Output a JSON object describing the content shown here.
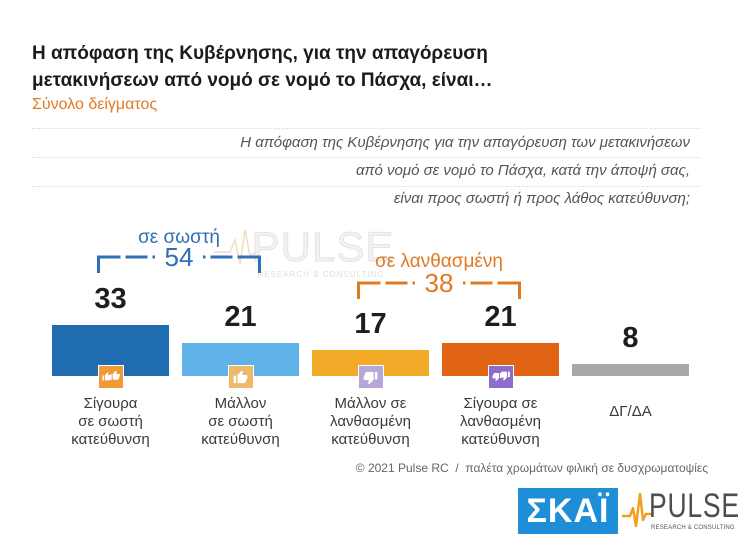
{
  "chart_data": {
    "type": "bar",
    "title": "Η απόφαση της Κυβέρνησης, για την απαγόρευση\nμετακινήσεων από νομό σε νομό το Πάσχα, είναι…",
    "subtitle": "Σύνολο δείγματος",
    "question": "Η απόφαση της Κυβέρνησης για την απαγόρευση των μετακινήσεων\nαπό νομό σε νομό το Πάσχα, κατά την άποψή σας,\nείναι προς σωστή ή προς λάθος κατεύθυνση;",
    "categories": [
      "Σίγουρα\nσε σωστή\nκατεύθυνση",
      "Μάλλον\nσε σωστή\nκατεύθυνση",
      "Μάλλον σε\nλανθασμένη\nκατεύθυνση",
      "Σίγουρα σε\nλανθασμένη\nκατεύθυνση",
      "ΔΓ/ΔΑ"
    ],
    "values": [
      33,
      21,
      17,
      21,
      8
    ],
    "colors": [
      "#1f6cb0",
      "#5fb3e8",
      "#f2aa28",
      "#e06414",
      "#a8a8a8"
    ],
    "icons": [
      "thumbs-up-double-icon",
      "thumbs-up-icon",
      "thumbs-down-icon",
      "thumbs-down-double-icon",
      null
    ],
    "icon_colors": [
      "#ee9a35",
      "#edb96b",
      "#b9a6d9",
      "#8e6cc9",
      null
    ],
    "groups": [
      {
        "label": "σε σωστή",
        "value": 54,
        "members": [
          0,
          1
        ],
        "color": "#2f6fb7"
      },
      {
        "label": "σε λανθασμένη",
        "value": 38,
        "members": [
          2,
          3
        ],
        "color": "#e07a22"
      }
    ]
  },
  "watermark": {
    "name": "PULSE",
    "tagline": "RESEARCH & CONSULTING"
  },
  "footer": {
    "credit": "© 2021 Pulse RC  /  παλέτα χρωμάτων φιλική σε δυσχρωματοψίες"
  },
  "logos": {
    "skai": "ΣΚΑΪ",
    "pulse": "PULSE",
    "pulse_tagline": "RESEARCH & CONSULTING"
  }
}
